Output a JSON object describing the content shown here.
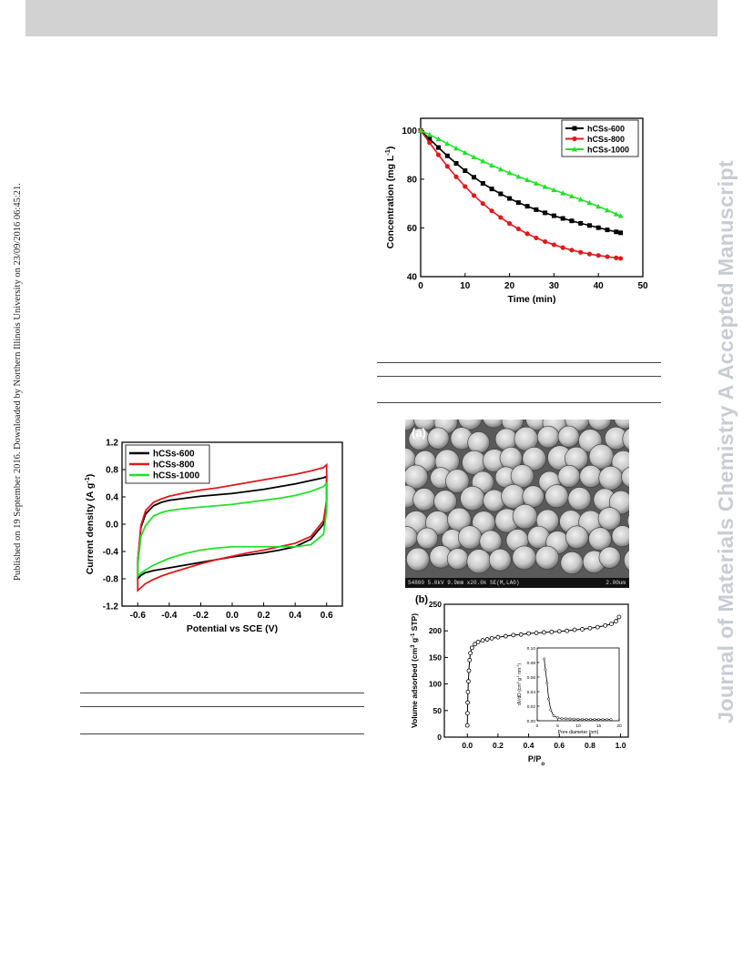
{
  "sidebar_text": "Published on 19 September 2016. Downloaded by Northern Illinois University on 23/09/2016 06:45:21.",
  "watermark": "Journal of Materials Chemistry A Accepted Manuscript",
  "chart_data": [
    {
      "type": "line",
      "title": "",
      "xlabel": "Time (min)",
      "ylabel": "Concentration (mg L",
      "ylabel_sup": "-1",
      "ylabel_close": ")",
      "xlim": [
        0,
        50
      ],
      "ylim": [
        40,
        105
      ],
      "xticks": [
        0,
        10,
        20,
        30,
        40,
        50
      ],
      "yticks": [
        40,
        60,
        80,
        100
      ],
      "legend_position": "top-right",
      "x": [
        0,
        2,
        4,
        6,
        8,
        10,
        12,
        14,
        16,
        18,
        20,
        22,
        24,
        26,
        28,
        30,
        32,
        34,
        36,
        38,
        40,
        42,
        44,
        45
      ],
      "series": [
        {
          "name": "hCSs-600",
          "color": "#000000",
          "marker": "square",
          "values": [
            100,
            96.5,
            93,
            89.6,
            86.5,
            83.5,
            80.8,
            78.3,
            76,
            74,
            72.1,
            70.4,
            68.9,
            67.5,
            66.2,
            65,
            63.9,
            62.9,
            61.9,
            61,
            60.1,
            59.2,
            58.4,
            58
          ]
        },
        {
          "name": "hCSs-800",
          "color": "#e0191c",
          "marker": "circle",
          "values": [
            100,
            95,
            90,
            85.3,
            81,
            77,
            73.3,
            70,
            67,
            64.3,
            61.8,
            59.6,
            57.6,
            55.9,
            54.4,
            53.1,
            51.9,
            50.9,
            50,
            49.3,
            48.7,
            48.2,
            47.7,
            47.5
          ]
        },
        {
          "name": "hCSs-1000",
          "color": "#22e02a",
          "marker": "triangle",
          "values": [
            100,
            98.3,
            96.5,
            94.6,
            92.7,
            90.9,
            89.1,
            87.4,
            85.7,
            84.1,
            82.6,
            81.1,
            79.7,
            78.3,
            76.9,
            75.6,
            74.3,
            73,
            71.7,
            70.3,
            68.8,
            67.3,
            65.7,
            65
          ]
        }
      ]
    },
    {
      "type": "line",
      "title": "",
      "xlabel": "Potential vs SCE (V)",
      "ylabel": "Current density (A g",
      "ylabel_sup": "-1",
      "ylabel_close": ")",
      "xlim": [
        -0.7,
        0.7
      ],
      "ylim": [
        -1.2,
        1.2
      ],
      "xticks": [
        "-0.6",
        "-0.4",
        "-0.2",
        "0.0",
        "0.2",
        "0.4",
        "0.6"
      ],
      "yticks": [
        "-1.2",
        "-0.8",
        "-0.4",
        "0.0",
        "0.4",
        "0.8",
        "1.2"
      ],
      "legend_position": "top-left",
      "x": [
        -0.6,
        -0.58,
        -0.55,
        -0.5,
        -0.45,
        -0.4,
        -0.3,
        -0.2,
        -0.1,
        0.0,
        0.1,
        0.2,
        0.3,
        0.4,
        0.5,
        0.58,
        0.6
      ],
      "series": [
        {
          "name": "hCSs-600",
          "color": "#000000",
          "upper": [
            -0.55,
            -0.05,
            0.15,
            0.27,
            0.32,
            0.35,
            0.38,
            0.41,
            0.43,
            0.45,
            0.48,
            0.51,
            0.55,
            0.59,
            0.64,
            0.68,
            0.7
          ],
          "lower": [
            -0.8,
            -0.75,
            -0.71,
            -0.68,
            -0.66,
            -0.64,
            -0.6,
            -0.56,
            -0.52,
            -0.48,
            -0.45,
            -0.42,
            -0.38,
            -0.33,
            -0.22,
            0.0,
            0.25
          ]
        },
        {
          "name": "hCSs-800",
          "color": "#e0191c",
          "upper": [
            -0.55,
            -0.02,
            0.2,
            0.32,
            0.37,
            0.41,
            0.46,
            0.5,
            0.53,
            0.57,
            0.61,
            0.65,
            0.69,
            0.73,
            0.78,
            0.83,
            0.87
          ],
          "lower": [
            -0.97,
            -0.93,
            -0.87,
            -0.81,
            -0.76,
            -0.72,
            -0.65,
            -0.58,
            -0.52,
            -0.47,
            -0.42,
            -0.38,
            -0.33,
            -0.28,
            -0.18,
            0.05,
            0.35
          ]
        },
        {
          "name": "hCSs-1000",
          "color": "#22e02a",
          "upper": [
            -0.6,
            -0.18,
            -0.02,
            0.12,
            0.17,
            0.2,
            0.23,
            0.25,
            0.27,
            0.29,
            0.32,
            0.35,
            0.38,
            0.42,
            0.48,
            0.55,
            0.6
          ],
          "lower": [
            -0.76,
            -0.72,
            -0.67,
            -0.6,
            -0.55,
            -0.5,
            -0.43,
            -0.38,
            -0.35,
            -0.33,
            -0.33,
            -0.33,
            -0.33,
            -0.33,
            -0.3,
            -0.15,
            0.2
          ]
        }
      ]
    },
    {
      "type": "scatter",
      "title": "",
      "panel_label": "(b)",
      "xlabel": "P/P",
      "xlabel_sub": "o",
      "ylabel": "Volume adsorbed (cm",
      "ylabel_sup": "3",
      "ylabel_mid": " g",
      "ylabel_sup2": "-1",
      "ylabel_close": " STP)",
      "xlim": [
        -0.15,
        1.05
      ],
      "ylim": [
        0,
        250
      ],
      "xticks": [
        "0.0",
        "0.2",
        "0.4",
        "0.6",
        "0.8",
        "1.0"
      ],
      "yticks": [
        "0",
        "50",
        "100",
        "150",
        "200",
        "250"
      ],
      "x": [
        0.0,
        0.001,
        0.002,
        0.004,
        0.007,
        0.01,
        0.015,
        0.02,
        0.03,
        0.05,
        0.07,
        0.1,
        0.13,
        0.16,
        0.2,
        0.25,
        0.3,
        0.35,
        0.4,
        0.45,
        0.5,
        0.55,
        0.6,
        0.65,
        0.7,
        0.75,
        0.8,
        0.85,
        0.9,
        0.94,
        0.97,
        0.99
      ],
      "values": [
        22,
        45,
        65,
        85,
        105,
        125,
        145,
        158,
        168,
        175,
        179,
        182,
        184,
        186,
        188,
        190,
        192,
        193,
        195,
        196,
        197,
        198,
        199,
        200,
        202,
        203,
        205,
        207,
        210,
        213,
        218,
        226
      ],
      "inset": {
        "xlabel": "Pore diameter (nm)",
        "ylabel": "dV/dD (cm",
        "ylabel_sup": "3",
        "ylabel_mid": " g",
        "ylabel_sup2": "-1",
        "ylabel_end": " nm",
        "ylabel_sup3": "-1",
        "ylabel_close": ")",
        "xlim": [
          0,
          20
        ],
        "ylim": [
          0,
          0.1
        ],
        "xticks": [
          "0",
          "5",
          "10",
          "15",
          "20"
        ],
        "yticks": [
          "0.00",
          "0.02",
          "0.04",
          "0.06",
          "0.08",
          "0.10"
        ],
        "x": [
          1.7,
          2.0,
          2.4,
          2.8,
          3.3,
          4,
          5,
          6,
          7,
          8,
          9,
          10,
          11,
          12,
          13,
          14,
          15,
          16,
          17,
          18
        ],
        "values": [
          0.085,
          0.07,
          0.052,
          0.03,
          0.015,
          0.007,
          0.004,
          0.003,
          0.0028,
          0.0025,
          0.0023,
          0.0022,
          0.002,
          0.002,
          0.0019,
          0.0018,
          0.0018,
          0.0017,
          0.0017,
          0.0017
        ]
      }
    }
  ],
  "sem": {
    "label": "(a)",
    "info": "S4800 5.0kV 9.9mm x20.0k SE(M,LA0)",
    "scale": "2.00um"
  }
}
